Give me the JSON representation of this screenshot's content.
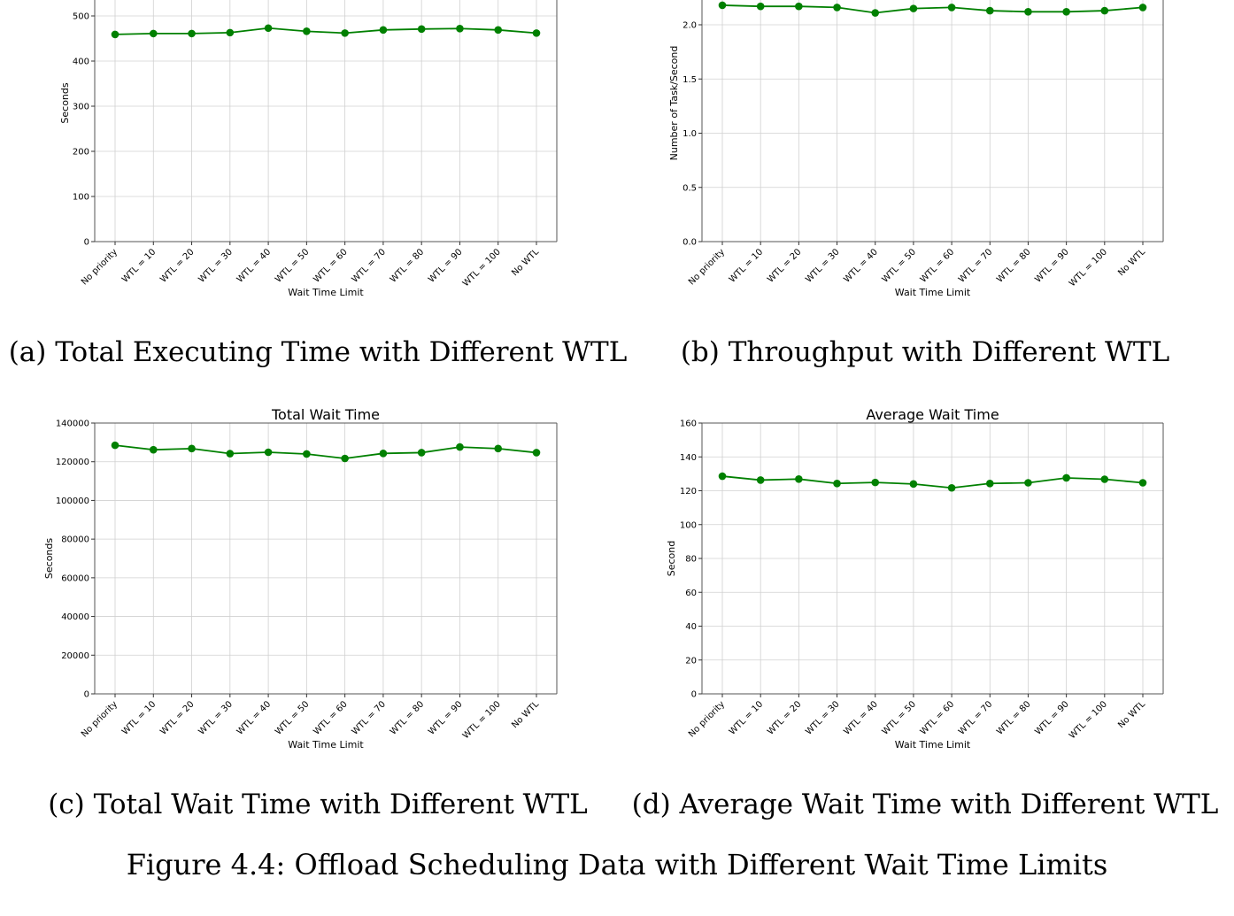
{
  "figure_caption": "Figure 4.4: Offload Scheduling Data with Different Wait Time Limits",
  "panels": [
    {
      "caption": "(a) Total Executing Time with Different WTL",
      "chart_data": {
        "type": "line",
        "title": "",
        "xlabel": "Wait Time Limit",
        "ylabel": "Seconds",
        "categories": [
          "No priority",
          "WTL = 10",
          "WTL = 20",
          "WTL = 30",
          "WTL = 40",
          "WTL = 50",
          "WTL = 60",
          "WTL = 70",
          "WTL = 80",
          "WTL = 90",
          "WTL = 100",
          "No WTL"
        ],
        "values": [
          459,
          461,
          461,
          463,
          473,
          466,
          462,
          469,
          471,
          472,
          469,
          462
        ],
        "yticks": [
          0,
          100,
          200,
          300,
          400,
          500
        ],
        "ylim": [
          0,
          500
        ],
        "grid": true,
        "color": "#008000"
      }
    },
    {
      "caption": "(b) Throughput with Different WTL",
      "chart_data": {
        "type": "line",
        "title": "",
        "xlabel": "Wait Time Limit",
        "ylabel": "Number of Task/Second",
        "categories": [
          "No priority",
          "WTL = 10",
          "WTL = 20",
          "WTL = 30",
          "WTL = 40",
          "WTL = 50",
          "WTL = 60",
          "WTL = 70",
          "WTL = 80",
          "WTL = 90",
          "WTL = 100",
          "No WTL"
        ],
        "values": [
          2.18,
          2.17,
          2.17,
          2.16,
          2.11,
          2.15,
          2.16,
          2.13,
          2.12,
          2.12,
          2.13,
          2.16
        ],
        "yticks": [
          0.0,
          0.5,
          1.0,
          1.5,
          2.0
        ],
        "ytick_labels": [
          "0.0",
          "0.5",
          "1.0",
          "1.5",
          "2.0"
        ],
        "ylim": [
          0,
          2.0
        ],
        "grid": true,
        "color": "#008000"
      }
    },
    {
      "caption": "(c) Total Wait Time with Different WTL",
      "chart_data": {
        "type": "line",
        "title": "Total Wait Time",
        "xlabel": "Wait Time Limit",
        "ylabel": "Seconds",
        "categories": [
          "No priority",
          "WTL = 10",
          "WTL = 20",
          "WTL = 30",
          "WTL = 40",
          "WTL = 50",
          "WTL = 60",
          "WTL = 70",
          "WTL = 80",
          "WTL = 90",
          "WTL = 100",
          "No WTL"
        ],
        "values": [
          128500,
          126200,
          126800,
          124200,
          124900,
          124000,
          121700,
          124300,
          124700,
          127600,
          126800,
          124700
        ],
        "yticks": [
          0,
          20000,
          40000,
          60000,
          80000,
          100000,
          120000,
          140000
        ],
        "ylim": [
          0,
          140000
        ],
        "grid": true,
        "color": "#008000"
      }
    },
    {
      "caption": "(d) Average Wait Time with Different WTL",
      "chart_data": {
        "type": "line",
        "title": "Average Wait Time",
        "xlabel": "Wait Time Limit",
        "ylabel": "Second",
        "categories": [
          "No priority",
          "WTL = 10",
          "WTL = 20",
          "WTL = 30",
          "WTL = 40",
          "WTL = 50",
          "WTL = 60",
          "WTL = 70",
          "WTL = 80",
          "WTL = 90",
          "WTL = 100",
          "No WTL"
        ],
        "values": [
          128.6,
          126.3,
          126.9,
          124.3,
          124.9,
          124.0,
          121.7,
          124.3,
          124.7,
          127.6,
          126.8,
          124.7
        ],
        "yticks": [
          0,
          20,
          40,
          60,
          80,
          100,
          120,
          140,
          160
        ],
        "ylim": [
          0,
          160
        ],
        "grid": true,
        "color": "#008000"
      }
    }
  ]
}
